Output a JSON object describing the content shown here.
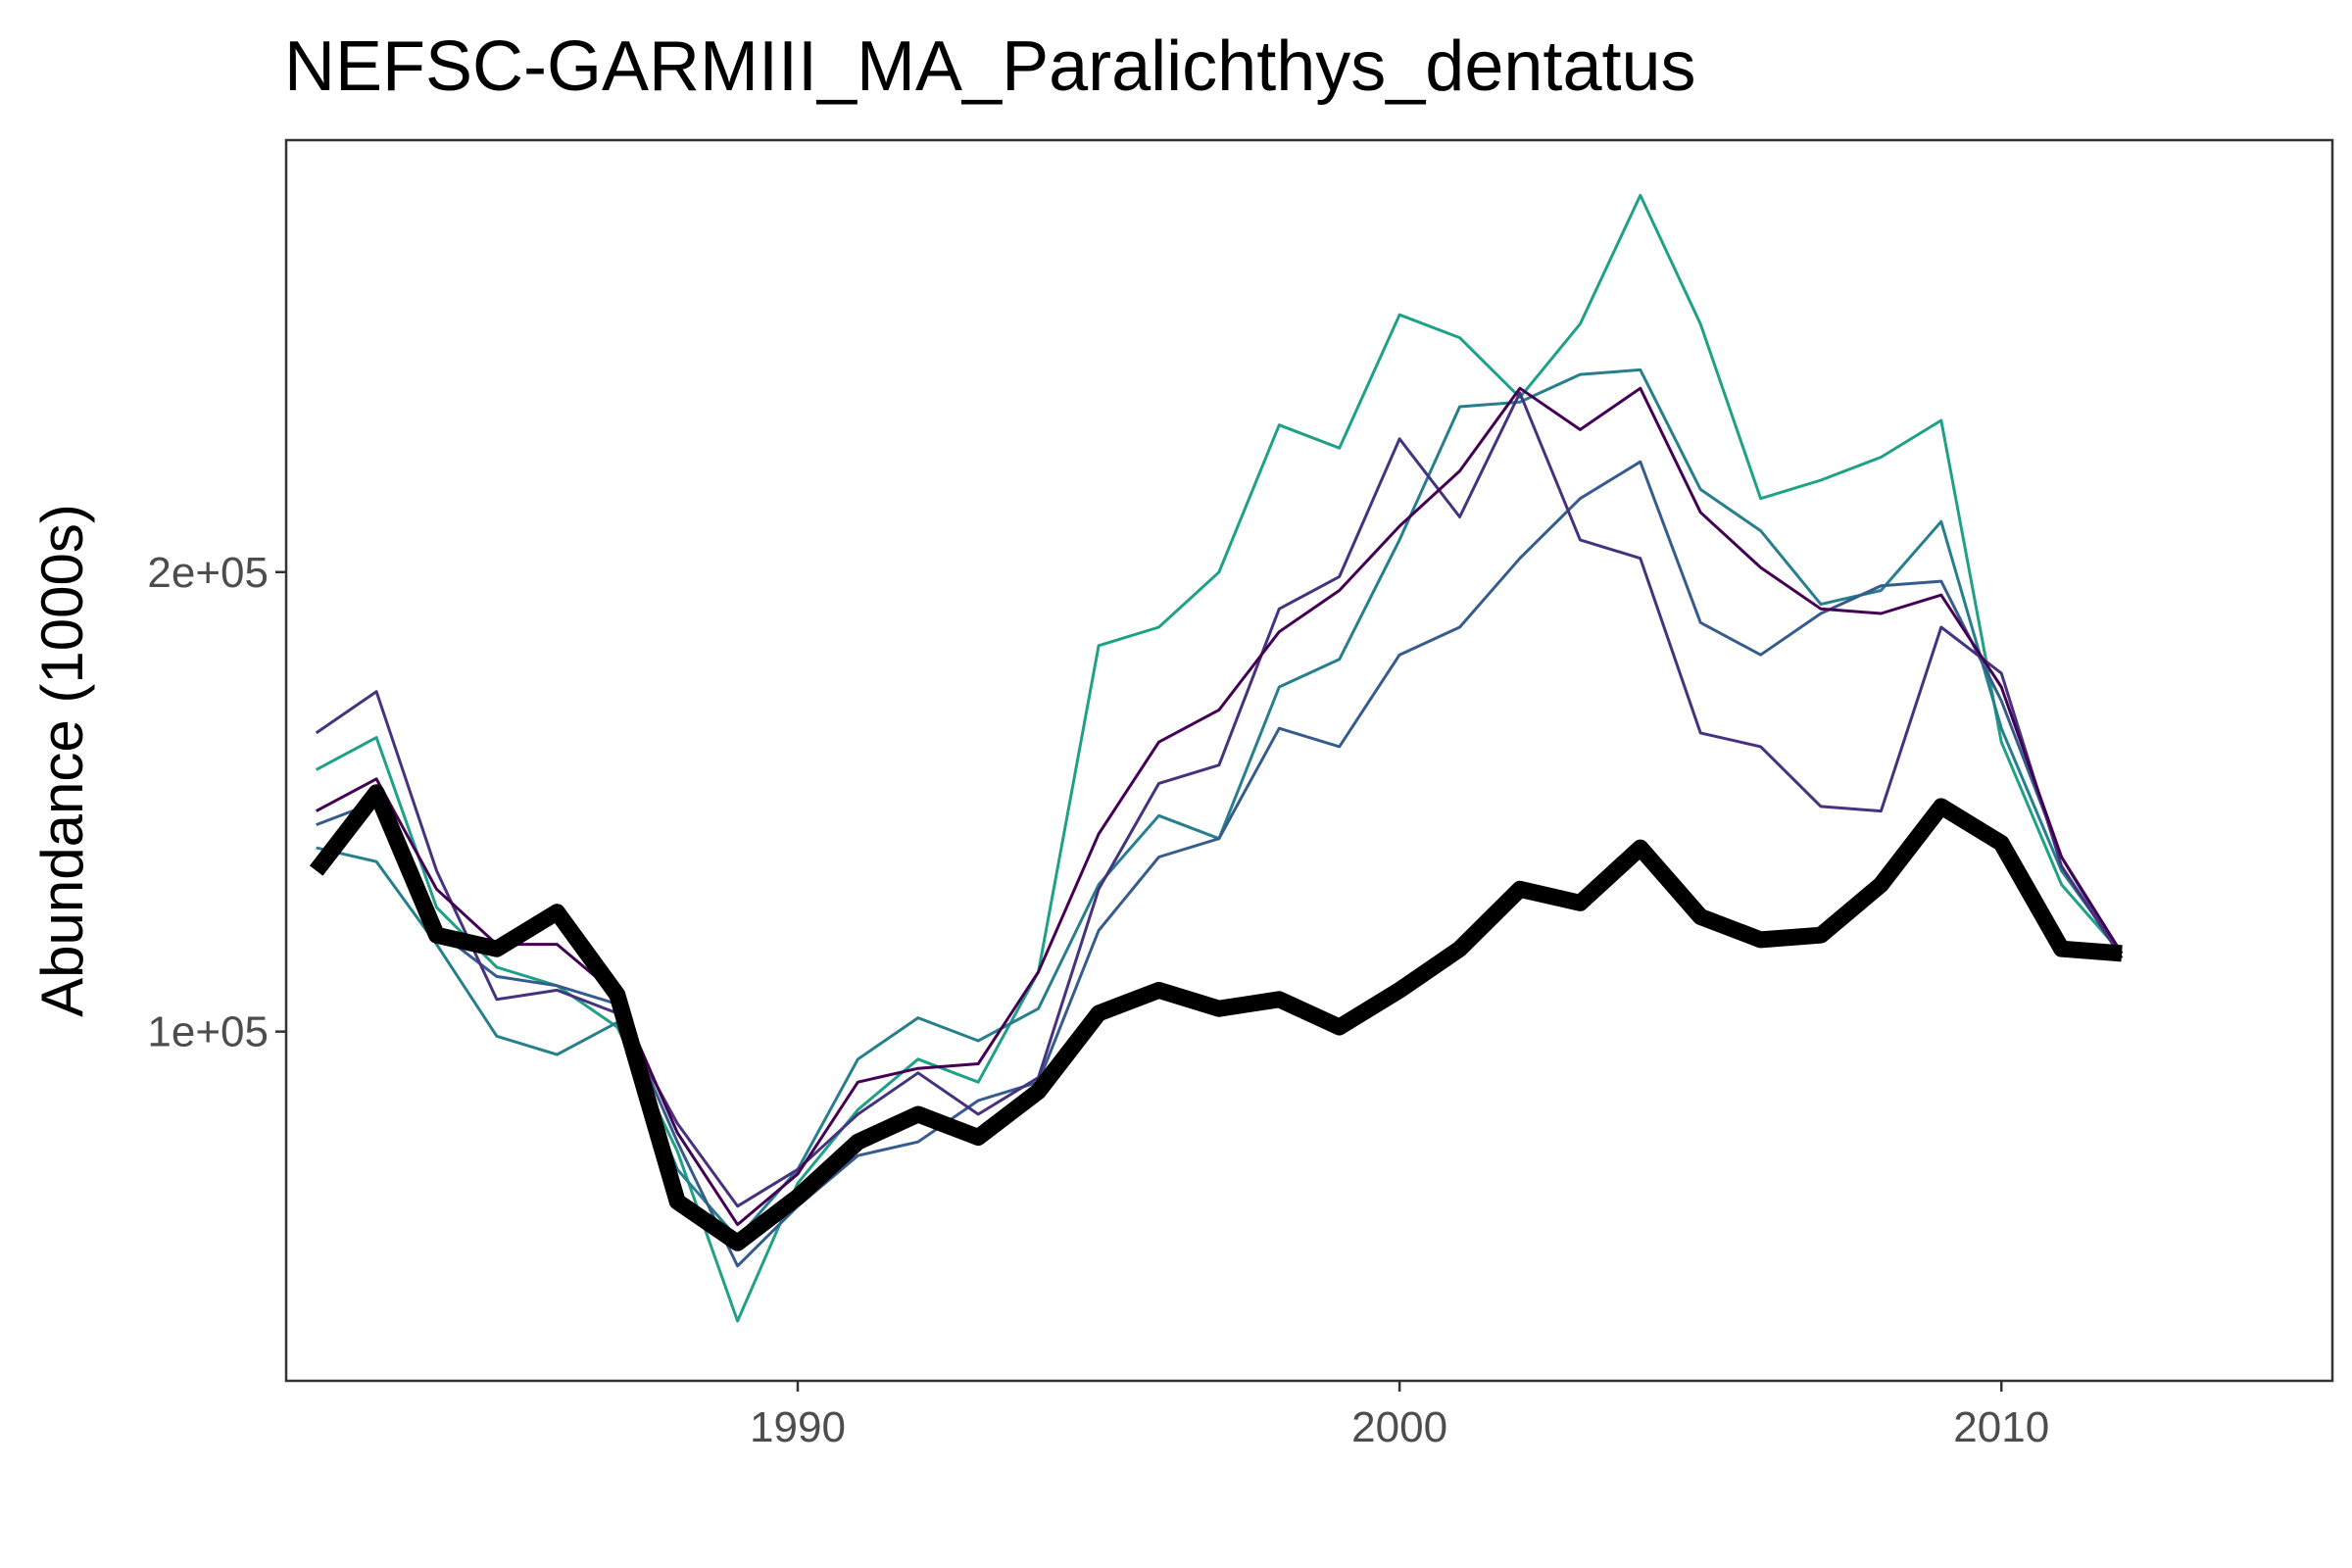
{
  "chart_data": {
    "type": "line",
    "title": "NEFSC-GARMIII_MA_Paralichthys_dentatus",
    "xlabel": "",
    "ylabel": "Abundance (1000s)",
    "xlim": [
      1981.5,
      2015.5
    ],
    "ylim": [
      24000,
      294000
    ],
    "x_ticks": [
      1990,
      2000,
      2010
    ],
    "x_tick_labels": [
      "1990",
      "2000",
      "2010"
    ],
    "y_ticks": [
      100000,
      200000
    ],
    "y_tick_labels": [
      "1e+05",
      "2e+05"
    ],
    "grid": false,
    "legend": "none",
    "x": [
      1982,
      1983,
      1984,
      1985,
      1986,
      1987,
      1988,
      1989,
      1990,
      1991,
      1992,
      1993,
      1994,
      1995,
      1996,
      1997,
      1998,
      1999,
      2000,
      2001,
      2002,
      2003,
      2004,
      2005,
      2006,
      2007,
      2008,
      2009,
      2010,
      2011,
      2012
    ],
    "series": [
      {
        "color": "#1fa187",
        "width": 3,
        "values": [
          157000,
          164000,
          127000,
          114000,
          110000,
          101000,
          74000,
          37000,
          67000,
          83000,
          94000,
          89000,
          113000,
          184000,
          188000,
          200000,
          232000,
          227000,
          256000,
          251000,
          238000,
          254000,
          282000,
          254000,
          216000,
          220000,
          225000,
          233000,
          163000,
          132000,
          117000
        ]
      },
      {
        "color": "#277f8e",
        "width": 3,
        "values": [
          140000,
          137000,
          119000,
          99000,
          95000,
          102000,
          70000,
          55000,
          70000,
          94000,
          103000,
          98000,
          105000,
          132000,
          147000,
          142000,
          175000,
          181000,
          207000,
          236000,
          237000,
          243000,
          244000,
          218000,
          209000,
          193000,
          196000,
          211000,
          166000,
          135000,
          117000
        ]
      },
      {
        "color": "#365c8d",
        "width": 3,
        "values": [
          145000,
          150000,
          122000,
          112000,
          110000,
          106000,
          76000,
          49000,
          62000,
          73000,
          76000,
          85000,
          89000,
          122000,
          138000,
          142000,
          166000,
          162000,
          182000,
          188000,
          203000,
          216000,
          224000,
          189000,
          182000,
          191000,
          197000,
          198000,
          172000,
          138000,
          116000
        ]
      },
      {
        "color": "#46327e",
        "width": 3,
        "values": [
          165000,
          174000,
          135000,
          107000,
          109000,
          104000,
          80000,
          62000,
          70000,
          82000,
          91000,
          82000,
          90000,
          131000,
          154000,
          158000,
          192000,
          199000,
          229000,
          212000,
          239000,
          207000,
          203000,
          165000,
          162000,
          149000,
          148000,
          188000,
          178000,
          136000,
          116000
        ]
      },
      {
        "color": "#440154",
        "width": 3,
        "values": [
          148000,
          155000,
          131000,
          119000,
          119000,
          108000,
          78000,
          58000,
          69000,
          89000,
          92000,
          93000,
          113000,
          143000,
          163000,
          170000,
          187000,
          196000,
          210000,
          222000,
          240000,
          231000,
          240000,
          213000,
          201000,
          192000,
          191000,
          195000,
          175000,
          138000,
          117000
        ]
      },
      {
        "color": "#000000",
        "width": 17,
        "values": [
          135000,
          152000,
          121000,
          118000,
          126000,
          108000,
          63000,
          54000,
          64000,
          76000,
          82000,
          77000,
          87000,
          104000,
          109000,
          105000,
          107000,
          101000,
          109000,
          118000,
          131000,
          128000,
          140000,
          125000,
          120000,
          121000,
          132000,
          149000,
          141000,
          118000,
          117000
        ]
      }
    ]
  }
}
